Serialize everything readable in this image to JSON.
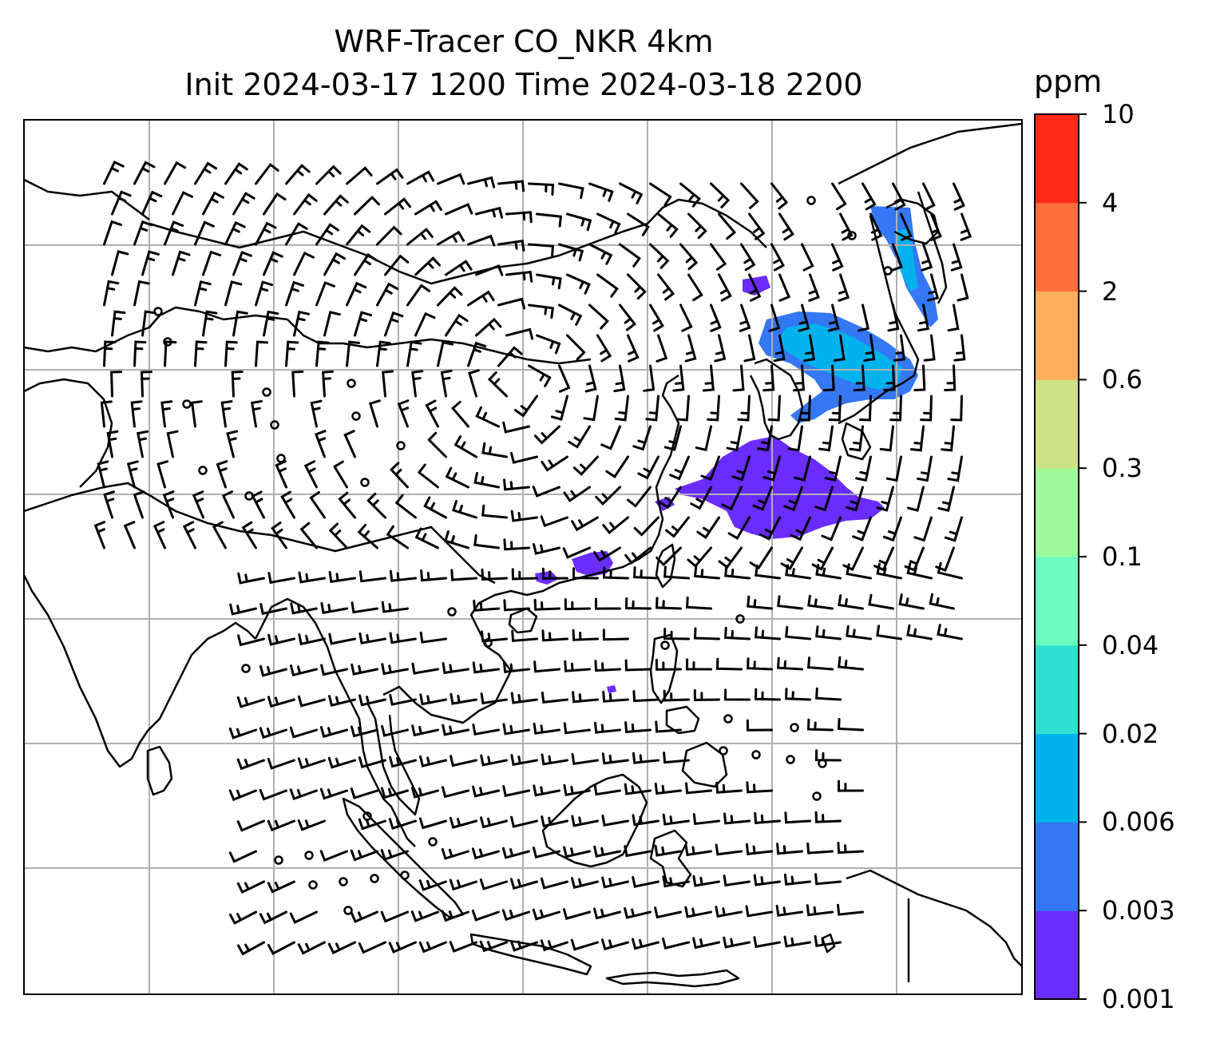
{
  "map": {
    "title_line1": "WRF-Tracer CO_NKR 4km",
    "title_line2": "Init 2024-03-17 1200 Time 2024-03-18 2200",
    "gridline_color": "#b0b0b0",
    "coastline_color": "#000000",
    "background": "#ffffff"
  },
  "colorbar": {
    "unit": "ppm",
    "ticks": [
      "0.001",
      "0.003",
      "0.006",
      "0.02",
      "0.04",
      "0.1",
      "0.3",
      "0.6",
      "2",
      "4",
      "10"
    ],
    "colors": [
      "#6a2cff",
      "#3478f6",
      "#00b3ed",
      "#2fe0d1",
      "#6bfac0",
      "#9cfa9b",
      "#cde286",
      "#fcb05e",
      "#ff6f3b",
      "#ff2a16"
    ]
  }
}
